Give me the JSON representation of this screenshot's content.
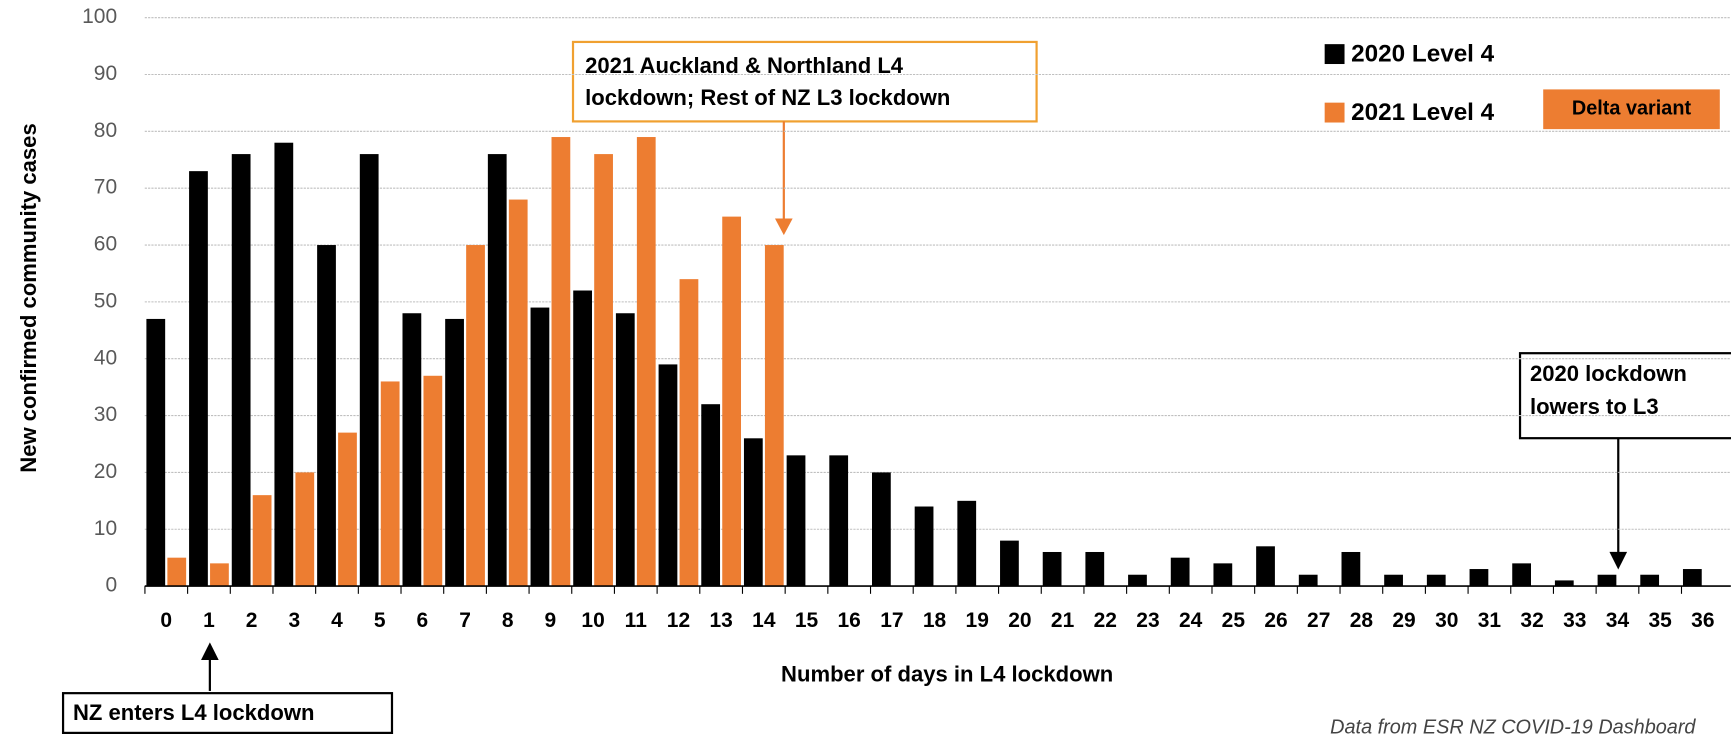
{
  "chart_data": {
    "type": "bar",
    "x_label": "Number of days in L4 lockdown",
    "y_label": "New confirmed community cases",
    "categories": [
      "0",
      "1",
      "2",
      "3",
      "4",
      "5",
      "6",
      "7",
      "8",
      "9",
      "10",
      "11",
      "12",
      "13",
      "14",
      "15",
      "16",
      "17",
      "18",
      "19",
      "20",
      "21",
      "22",
      "23",
      "24",
      "25",
      "26",
      "27",
      "28",
      "29",
      "30",
      "31",
      "32",
      "33",
      "34",
      "35",
      "36"
    ],
    "series": [
      {
        "name": "2020 Level 4",
        "color": "#000000",
        "values": [
          47,
          73,
          76,
          78,
          60,
          76,
          48,
          47,
          76,
          49,
          52,
          48,
          39,
          32,
          26,
          23,
          23,
          20,
          14,
          15,
          8,
          6,
          6,
          2,
          5,
          4,
          7,
          2,
          6,
          2,
          2,
          3,
          4,
          1,
          2,
          2,
          3
        ]
      },
      {
        "name": "2021 Level 4",
        "color": "#ed7d31",
        "values": [
          5,
          4,
          16,
          20,
          27,
          36,
          37,
          60,
          68,
          79,
          76,
          79,
          54,
          65,
          60,
          null,
          null,
          null,
          null,
          null,
          null,
          null,
          null,
          null,
          null,
          null,
          null,
          null,
          null,
          null,
          null,
          null,
          null,
          null,
          null,
          null,
          null
        ]
      }
    ],
    "ylim": [
      0,
      100
    ],
    "yticks": [
      0,
      10,
      20,
      30,
      40,
      50,
      60,
      70,
      80,
      90,
      100
    ],
    "grid": true,
    "legend_label": "Delta variant",
    "annotations": [
      {
        "lines": [
          "2021 Auckland & Northland L4",
          "lockdown; Rest of NZ L3 lockdown"
        ]
      },
      {
        "lines": [
          "2020 lockdown",
          "lowers to L3"
        ]
      },
      {
        "lines": [
          "NZ enters L4 lockdown"
        ]
      }
    ],
    "source": "Data from ESR NZ COVID-19 Dashboard"
  }
}
